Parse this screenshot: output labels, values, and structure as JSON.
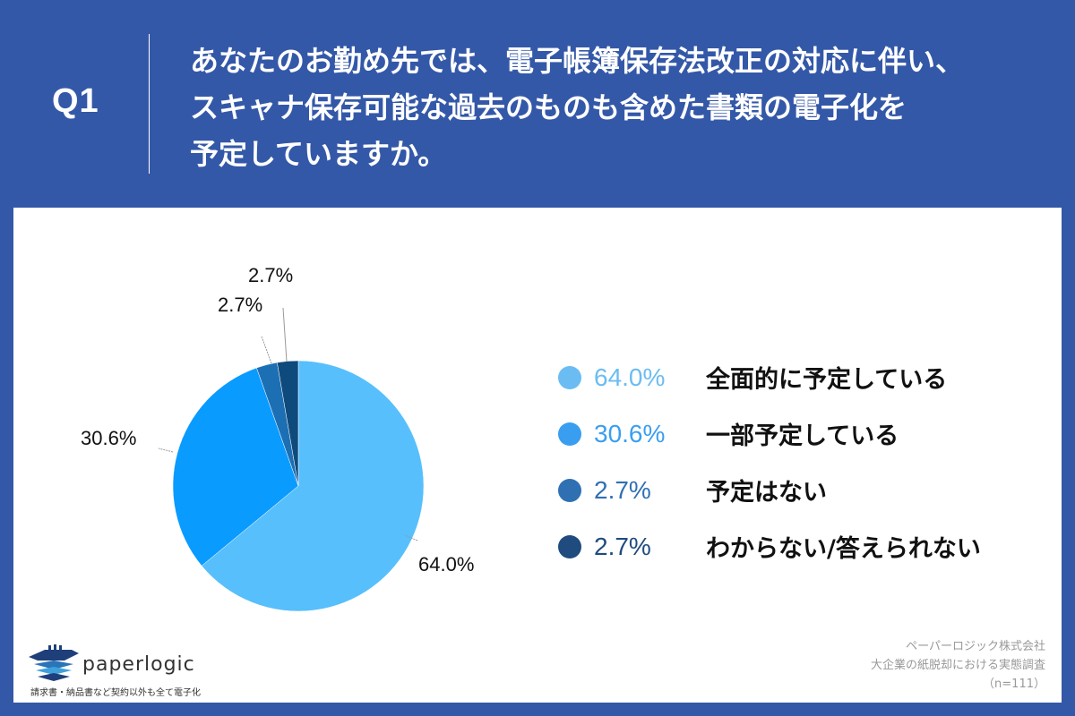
{
  "header": {
    "question_number": "Q1",
    "question_lines": [
      "あなたのお勤め先では、電子帳簿保存法改正の対応に伴い、",
      "スキャナ保存可能な過去のものも含めた書類の電子化を",
      "予定していますか。"
    ]
  },
  "chart_data": {
    "type": "pie",
    "title": "あなたのお勤め先では、電子帳簿保存法改正の対応に伴い、スキャナ保存可能な過去のものも含めた書類の電子化を予定していますか。",
    "categories": [
      "全面的に予定している",
      "一部予定している",
      "予定はない",
      "わからない/答えられない"
    ],
    "values": [
      64.0,
      30.6,
      2.7,
      2.7
    ],
    "value_labels": [
      "64.0%",
      "30.6%",
      "2.7%",
      "2.7%"
    ],
    "colors": [
      "#57bffc",
      "#0a9bff",
      "#1d6fb4",
      "#0f4a7c"
    ],
    "legend_colors": [
      "#6bbcf2",
      "#3a9ef0",
      "#2f70b3",
      "#1f4b7e"
    ],
    "start_angle": "12 o'clock, clockwise",
    "legend_position": "right",
    "sample_size": "n=111"
  },
  "legend": [
    {
      "pct": "64.0%",
      "label": "全面的に予定している",
      "color": "#6bbcf2"
    },
    {
      "pct": "30.6%",
      "label": "一部予定している",
      "color": "#3a9ef0"
    },
    {
      "pct": "2.7%",
      "label": "予定はない",
      "color": "#2f70b3"
    },
    {
      "pct": "2.7%",
      "label": "わからない/答えられない",
      "color": "#1f4b7e"
    }
  ],
  "pie_labels": {
    "full": "64.0%",
    "partial": "30.6%",
    "none": "2.7%",
    "unknown": "2.7%"
  },
  "logo": {
    "name": "paperlogic",
    "tagline": "請求書・納品書など契約以外も全て電子化"
  },
  "source": {
    "company": "ペーパーロジック株式会社",
    "survey": "大企業の紙脱却における実態調査",
    "sample": "（n=111）"
  }
}
